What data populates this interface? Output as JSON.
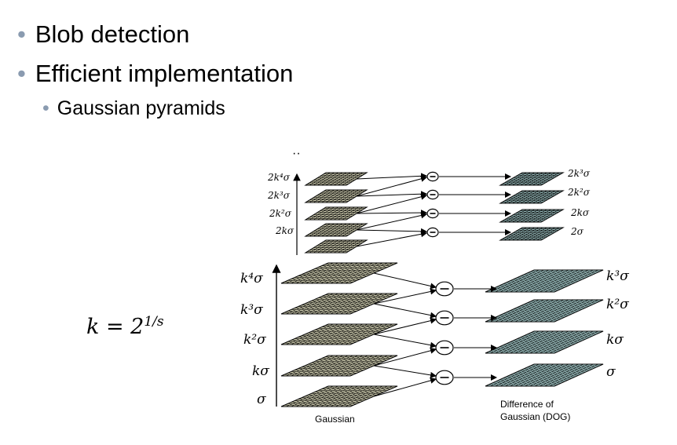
{
  "bullets": [
    {
      "text": "Blob detection",
      "level": 1
    },
    {
      "text": "Efficient implementation",
      "level": 1
    },
    {
      "text": "Gaussian pyramids",
      "level": 2
    }
  ],
  "formula": {
    "base": "k = 2",
    "exponent": "1/s"
  },
  "diagram": {
    "continuation_dots": "··",
    "upper_octave": {
      "gaussian_labels": [
        "2kσ",
        "2k²σ",
        "2k³σ",
        "2k⁴σ"
      ],
      "dog_labels": [
        "2σ",
        "2kσ",
        "2k²σ",
        "2k³σ"
      ]
    },
    "lower_octave": {
      "gaussian_labels": [
        "σ",
        "kσ",
        "k²σ",
        "k³σ",
        "k⁴σ"
      ],
      "dog_labels": [
        "σ",
        "kσ",
        "k²σ",
        "k³σ"
      ]
    },
    "minus_symbol": "−",
    "caption_gaussian": "Gaussian",
    "caption_dog_line1": "Difference of",
    "caption_dog_line2": "Gaussian (DOG)",
    "colors": {
      "gaussian_fill": "#e4e2c2",
      "dog_fill": "#a8cfcf",
      "grid": "#000000"
    }
  }
}
